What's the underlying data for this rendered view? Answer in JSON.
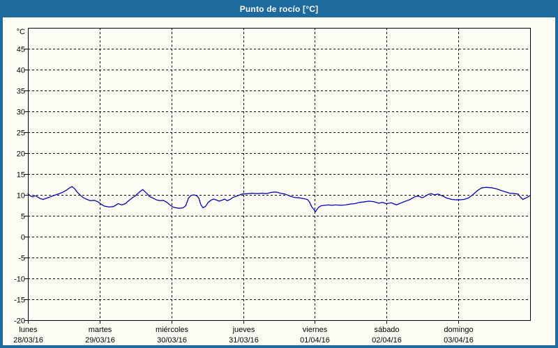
{
  "window": {
    "title": "Punto de rocío [°C]"
  },
  "colors": {
    "frame_blue": "#1c6a9e",
    "title_text": "#ffffff",
    "panel_background": "#fdfdf6",
    "grid_black": "#000000",
    "series_blue": "#0000cc"
  },
  "chart_data": {
    "type": "line",
    "title": "Punto de rocío [°C]",
    "ylabel": "°C",
    "xlabel": "",
    "ylim": [
      -20,
      50
    ],
    "y_ticks": [
      45,
      40,
      35,
      30,
      25,
      20,
      15,
      10,
      5,
      0,
      -5,
      -10,
      -15,
      -20
    ],
    "grid": "dashed",
    "legend": "none",
    "x_total_hours": 168,
    "days": [
      {
        "name": "lunes",
        "date": "28/03/16"
      },
      {
        "name": "martes",
        "date": "29/03/16"
      },
      {
        "name": "miércoles",
        "date": "30/03/16"
      },
      {
        "name": "jueves",
        "date": "31/03/16"
      },
      {
        "name": "viernes",
        "date": "01/04/16"
      },
      {
        "name": "sábado",
        "date": "02/04/16"
      },
      {
        "name": "domingo",
        "date": "03/04/16"
      }
    ],
    "series": [
      {
        "name": "Punto de rocío",
        "color": "#0000cc",
        "points_hour_value": [
          [
            0,
            10.3
          ],
          [
            0.7,
            9.8
          ],
          [
            1.6,
            9.5
          ],
          [
            2.3,
            9.8
          ],
          [
            3,
            9.6
          ],
          [
            4.2,
            9.1
          ],
          [
            5.1,
            8.9
          ],
          [
            5.8,
            9.1
          ],
          [
            7,
            9.4
          ],
          [
            8.1,
            9.7
          ],
          [
            9.3,
            10
          ],
          [
            10.5,
            10.3
          ],
          [
            11.6,
            10.6
          ],
          [
            12.8,
            11.1
          ],
          [
            14,
            11.7
          ],
          [
            14.7,
            12
          ],
          [
            15.6,
            11.5
          ],
          [
            16.3,
            10.8
          ],
          [
            17,
            10.3
          ],
          [
            17.9,
            9.7
          ],
          [
            18.6,
            9.3
          ],
          [
            19.8,
            8.9
          ],
          [
            20.9,
            8.6
          ],
          [
            22.1,
            8.7
          ],
          [
            23.3,
            8.4
          ],
          [
            24.4,
            7.8
          ],
          [
            25.6,
            7.3
          ],
          [
            27.2,
            7.1
          ],
          [
            28.6,
            7.2
          ],
          [
            30.2,
            7.9
          ],
          [
            31.4,
            7.6
          ],
          [
            32.6,
            7.9
          ],
          [
            33.7,
            8.6
          ],
          [
            34.9,
            9.3
          ],
          [
            36,
            9.8
          ],
          [
            37.2,
            10.6
          ],
          [
            38.4,
            11.3
          ],
          [
            39.1,
            10.8
          ],
          [
            40,
            10.2
          ],
          [
            40.7,
            9.6
          ],
          [
            41.9,
            9.2
          ],
          [
            43,
            8.8
          ],
          [
            44.2,
            8.6
          ],
          [
            45.3,
            8.7
          ],
          [
            46.5,
            8.2
          ],
          [
            47.7,
            7.5
          ],
          [
            48.8,
            7
          ],
          [
            50.5,
            6.8
          ],
          [
            51.9,
            6.9
          ],
          [
            52.8,
            7.4
          ],
          [
            53.7,
            9.2
          ],
          [
            54.6,
            9.9
          ],
          [
            55.6,
            10
          ],
          [
            56.5,
            9.8
          ],
          [
            57.2,
            9.2
          ],
          [
            57.9,
            7.6
          ],
          [
            58.6,
            6.9
          ],
          [
            59.5,
            7.3
          ],
          [
            60.3,
            8.2
          ],
          [
            61.2,
            8.7
          ],
          [
            62.1,
            9
          ],
          [
            63,
            8.8
          ],
          [
            63.9,
            8.5
          ],
          [
            64.9,
            8.7
          ],
          [
            65.8,
            9
          ],
          [
            66.7,
            8.6
          ],
          [
            67.6,
            8.9
          ],
          [
            68.6,
            9.4
          ],
          [
            69.8,
            9.7
          ],
          [
            70.9,
            10
          ],
          [
            71.6,
            10.2
          ],
          [
            73.7,
            10.3
          ],
          [
            75.1,
            10.4
          ],
          [
            76.7,
            10.3
          ],
          [
            78.4,
            10.4
          ],
          [
            79.8,
            10.3
          ],
          [
            81.4,
            10.6
          ],
          [
            83,
            10.7
          ],
          [
            84.4,
            10.4
          ],
          [
            86,
            10.2
          ],
          [
            87.7,
            9.7
          ],
          [
            89.1,
            9.4
          ],
          [
            90.7,
            9.3
          ],
          [
            92.3,
            9.1
          ],
          [
            93.5,
            8.9
          ],
          [
            94.2,
            8.3
          ],
          [
            94.9,
            7.2
          ],
          [
            95.8,
            6.4
          ],
          [
            96.1,
            5.9
          ],
          [
            96.6,
            6.4
          ],
          [
            97.2,
            7
          ],
          [
            98.1,
            7.4
          ],
          [
            99.3,
            7.5
          ],
          [
            100.5,
            7.6
          ],
          [
            101.6,
            7.5
          ],
          [
            103,
            7.6
          ],
          [
            104.7,
            7.5
          ],
          [
            106.3,
            7.6
          ],
          [
            107.7,
            7.8
          ],
          [
            109.3,
            7.9
          ],
          [
            111,
            8.2
          ],
          [
            112.3,
            8.3
          ],
          [
            114,
            8.5
          ],
          [
            115.6,
            8.4
          ],
          [
            117.4,
            8
          ],
          [
            118.6,
            8.2
          ],
          [
            119.8,
            7.9
          ],
          [
            121.6,
            8.1
          ],
          [
            123.3,
            7.6
          ],
          [
            125.6,
            8.3
          ],
          [
            127.9,
            8.9
          ],
          [
            129.5,
            9.6
          ],
          [
            130.7,
            9.7
          ],
          [
            131.9,
            9.3
          ],
          [
            133,
            9.7
          ],
          [
            133.9,
            10.1
          ],
          [
            134.9,
            10.3
          ],
          [
            136,
            10
          ],
          [
            137.2,
            10.2
          ],
          [
            138.8,
            9.7
          ],
          [
            140.2,
            9.2
          ],
          [
            141.9,
            8.9
          ],
          [
            143.7,
            8.8
          ],
          [
            145.8,
            8.9
          ],
          [
            147.2,
            9.2
          ],
          [
            148.8,
            10
          ],
          [
            150.5,
            11.1
          ],
          [
            151.9,
            11.7
          ],
          [
            153.5,
            11.8
          ],
          [
            155.1,
            11.7
          ],
          [
            156.5,
            11.5
          ],
          [
            158.1,
            11.1
          ],
          [
            159.8,
            10.7
          ],
          [
            161.2,
            10.4
          ],
          [
            162.8,
            10.3
          ],
          [
            164,
            10.2
          ],
          [
            164.7,
            9.5
          ],
          [
            165.6,
            8.9
          ],
          [
            166.7,
            9.3
          ],
          [
            167.9,
            9.8
          ]
        ]
      }
    ]
  }
}
